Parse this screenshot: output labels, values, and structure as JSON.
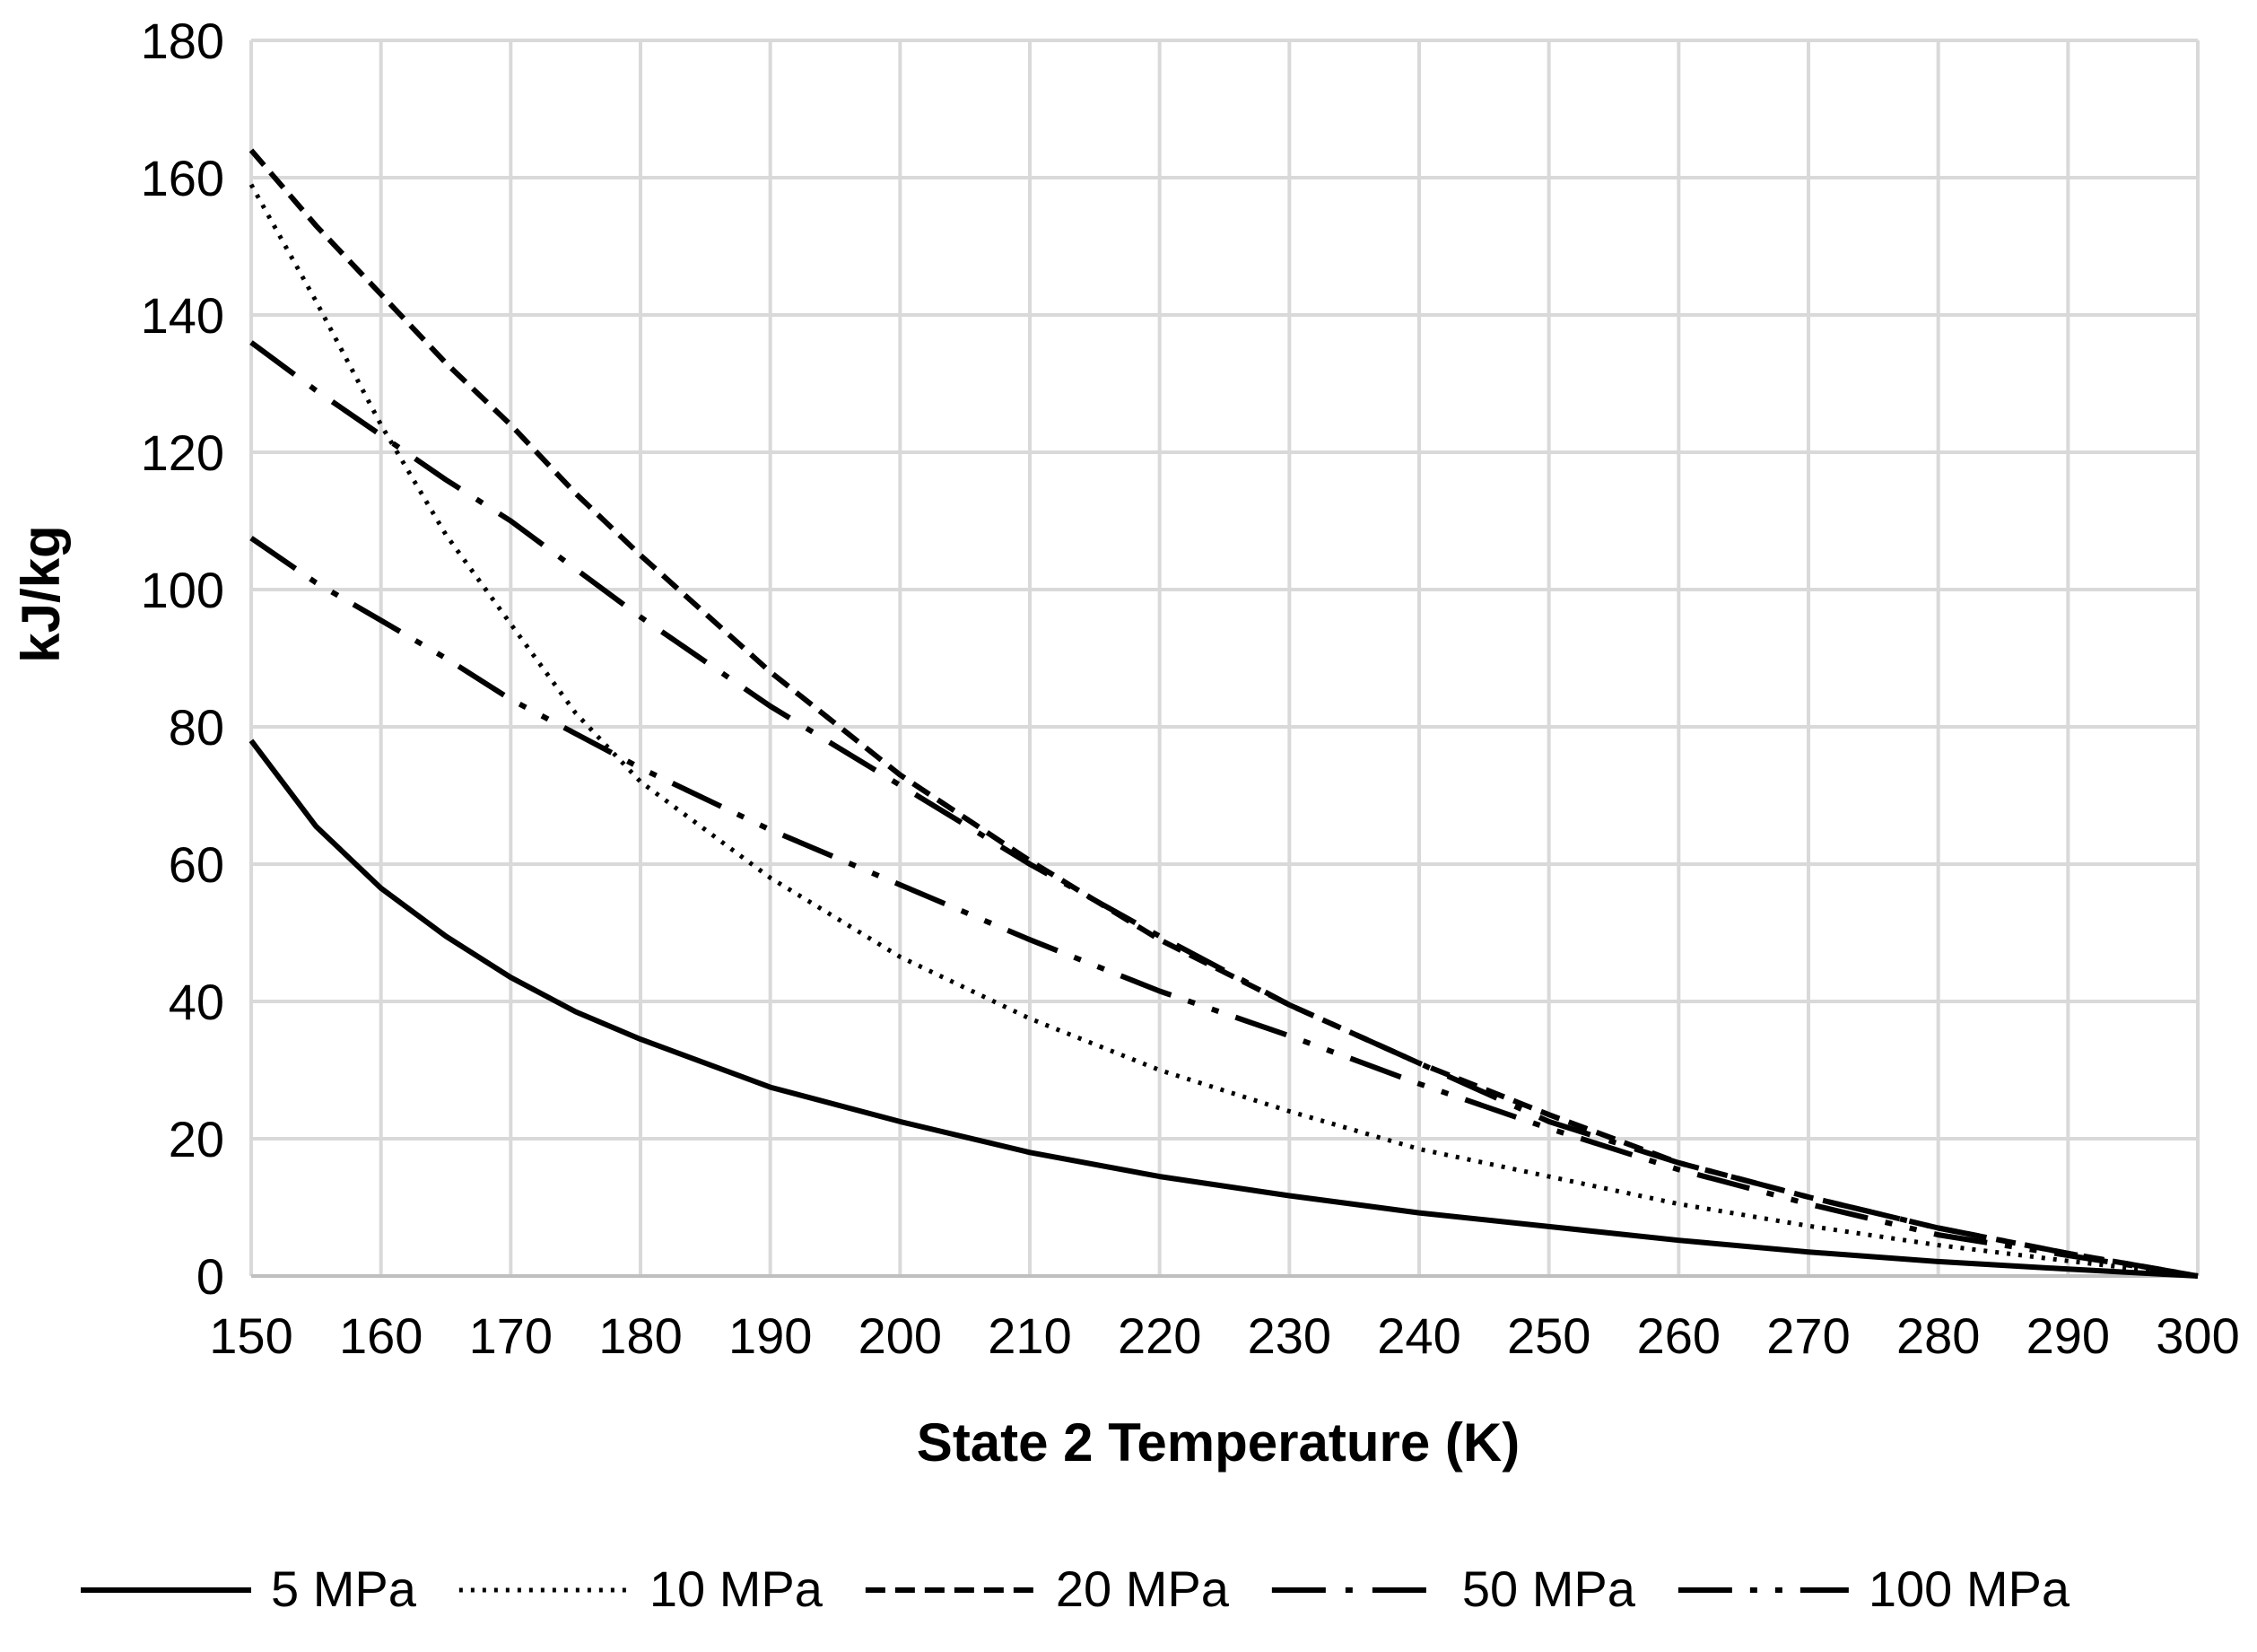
{
  "chart_data": {
    "type": "line",
    "title": "",
    "xlabel": "State 2 Temperature (K)",
    "ylabel": "kJ/kg",
    "xlim": [
      150,
      300
    ],
    "ylim": [
      0,
      180
    ],
    "grid": true,
    "legend_position": "bottom",
    "x_ticks": [
      150,
      160,
      170,
      180,
      190,
      200,
      210,
      220,
      230,
      240,
      250,
      260,
      270,
      280,
      290,
      300
    ],
    "y_ticks": [
      0,
      20,
      40,
      60,
      80,
      100,
      120,
      140,
      160,
      180
    ],
    "x": [
      150,
      155,
      160,
      165,
      170,
      175,
      180,
      190,
      200,
      210,
      220,
      230,
      240,
      250,
      260,
      270,
      280,
      290,
      300
    ],
    "series": [
      {
        "name": "5 MPa",
        "style": "solid",
        "values": [
          78,
          65.5,
          56.5,
          49.5,
          43.5,
          38.5,
          34.5,
          27.5,
          22.5,
          18,
          14.5,
          11.7,
          9.2,
          7.2,
          5.2,
          3.5,
          2.1,
          1.0,
          0
        ]
      },
      {
        "name": "10 MPa",
        "style": "dotted",
        "values": [
          159,
          142,
          124,
          108,
          95,
          82,
          72,
          58,
          46.5,
          37.5,
          30,
          24,
          18.5,
          14.5,
          10.5,
          7.3,
          4.5,
          2.2,
          0
        ]
      },
      {
        "name": "20 MPa",
        "style": "dashed",
        "values": [
          164,
          153,
          143,
          133,
          124,
          114,
          105,
          88,
          73,
          60.5,
          49,
          39.5,
          31,
          23.5,
          16.5,
          11.5,
          7,
          3.3,
          0
        ]
      },
      {
        "name": "50 MPa",
        "style": "dash-dot",
        "values": [
          136,
          129,
          122.5,
          116,
          110,
          103,
          96,
          83,
          71.5,
          60,
          49.5,
          39.5,
          31,
          22.5,
          16.5,
          11.5,
          7,
          3.3,
          0
        ]
      },
      {
        "name": "100 MPa",
        "style": "dash-dot-dot",
        "values": [
          107.5,
          101,
          95.5,
          90,
          84,
          79,
          74,
          65,
          57,
          49,
          41.5,
          35,
          28,
          21.5,
          15.5,
          10.5,
          6,
          3,
          0
        ]
      }
    ]
  },
  "colors": {
    "line": "#000000",
    "grid": "#d9d9d9",
    "background": "#ffffff"
  }
}
